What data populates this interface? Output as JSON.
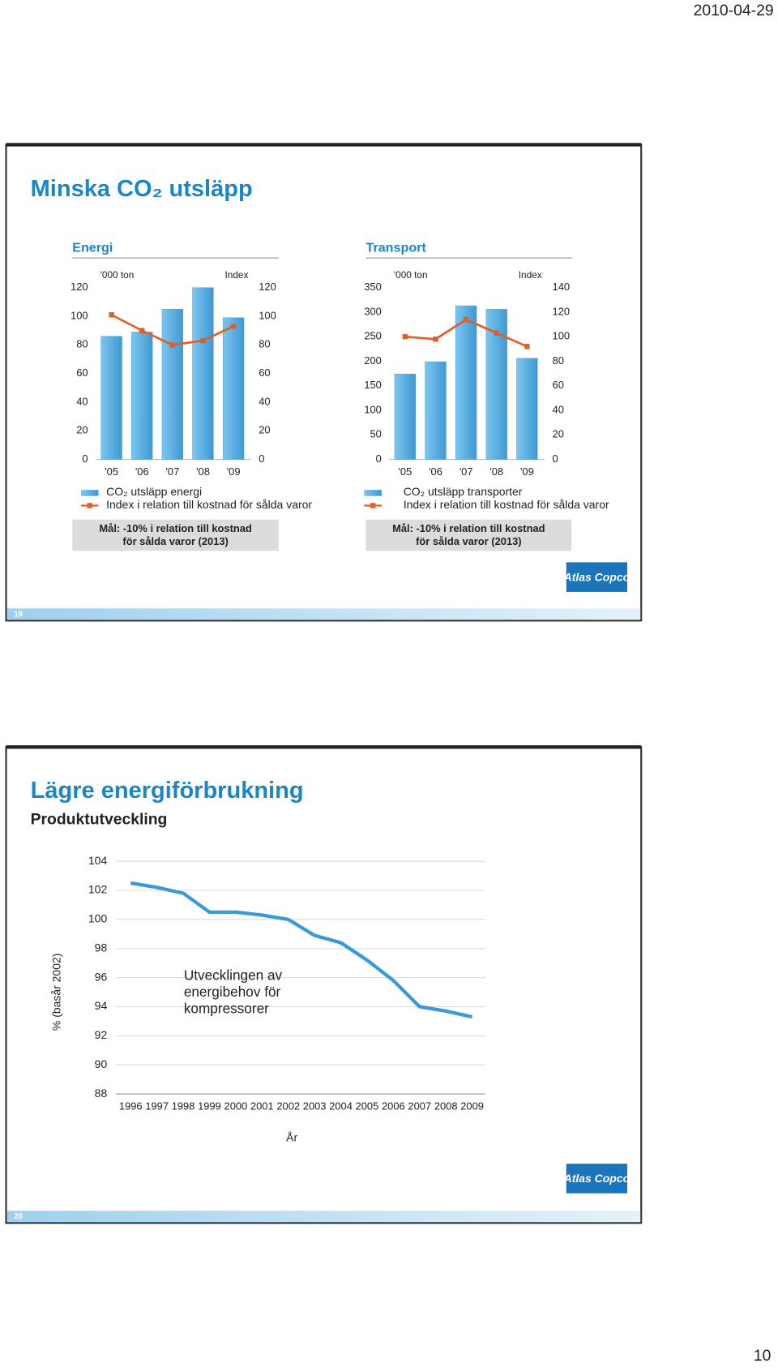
{
  "header": {
    "date": "2010-04-29"
  },
  "page_number": "10",
  "slides": [
    {
      "title": "Minska CO₂ utsläpp",
      "number": "19",
      "logo": "Atlas Copco",
      "charts": [
        {
          "type": "bar-line",
          "title": "Energi",
          "y_label": "'000 ton",
          "y2_label": "Index",
          "categories": [
            "'05",
            "'06",
            "'07",
            "'08",
            "'09"
          ],
          "ylim": [
            0,
            120
          ],
          "yticks": [
            0,
            20,
            40,
            60,
            80,
            100,
            120
          ],
          "y2lim": [
            0,
            120
          ],
          "y2ticks": [
            0,
            20,
            40,
            60,
            80,
            100,
            120
          ],
          "series": [
            {
              "name": "CO₂ utsläpp energi",
              "type": "bar",
              "color": "#4aa6dc",
              "values": [
                86,
                89,
                105,
                120,
                99
              ]
            },
            {
              "name": "Index i relation till kostnad för sålda varor",
              "type": "line",
              "axis": "y2",
              "color": "#e0602c",
              "values": [
                101,
                90,
                80,
                83,
                93
              ]
            }
          ],
          "goal": [
            "Mål: -10% i relation till kostnad",
            "för sålda varor (2013)"
          ]
        },
        {
          "type": "bar-line",
          "title": "Transport",
          "y_label": "'000 ton",
          "y2_label": "Index",
          "categories": [
            "'05",
            "'06",
            "'07",
            "'08",
            "'09"
          ],
          "ylim": [
            0,
            350
          ],
          "yticks": [
            0,
            50,
            100,
            150,
            200,
            250,
            300,
            350
          ],
          "y2lim": [
            0,
            140
          ],
          "y2ticks": [
            0,
            20,
            40,
            60,
            80,
            100,
            120,
            140
          ],
          "series": [
            {
              "name": "CO₂ utsläpp transporter",
              "type": "bar",
              "color": "#4aa6dc",
              "values": [
                174,
                199,
                313,
                306,
                206
              ]
            },
            {
              "name": "Index i relation till kostnad för sålda varor",
              "type": "line",
              "axis": "y2",
              "color": "#e0602c",
              "values": [
                100,
                98,
                114,
                103,
                92
              ]
            }
          ],
          "goal": [
            "Mål: -10% i relation till kostnad",
            "för sålda varor (2013)"
          ]
        }
      ]
    },
    {
      "title": "Lägre energiförbrukning",
      "subtitle": "Produktutveckling",
      "number": "20",
      "logo": "Atlas Copco",
      "charts": [
        {
          "type": "line",
          "y_label": "% (basår 2002)",
          "x_label": "År",
          "annotation": [
            "Utvecklingen av",
            "energibehov för",
            "kompressorer"
          ],
          "categories": [
            "1996",
            "1997",
            "1998",
            "1999",
            "2000",
            "2001",
            "2002",
            "2003",
            "2004",
            "2005",
            "2006",
            "2007",
            "2008",
            "2009"
          ],
          "values": [
            102.5,
            102.2,
            101.8,
            100.5,
            100.5,
            100.3,
            100,
            98.9,
            98.4,
            97.2,
            95.8,
            94.0,
            93.7,
            93.3
          ],
          "color": "#3a9ad9",
          "ylim": [
            88,
            104
          ],
          "yticks": [
            88,
            90,
            92,
            94,
            96,
            98,
            100,
            102,
            104
          ],
          "grid": true
        }
      ]
    }
  ]
}
